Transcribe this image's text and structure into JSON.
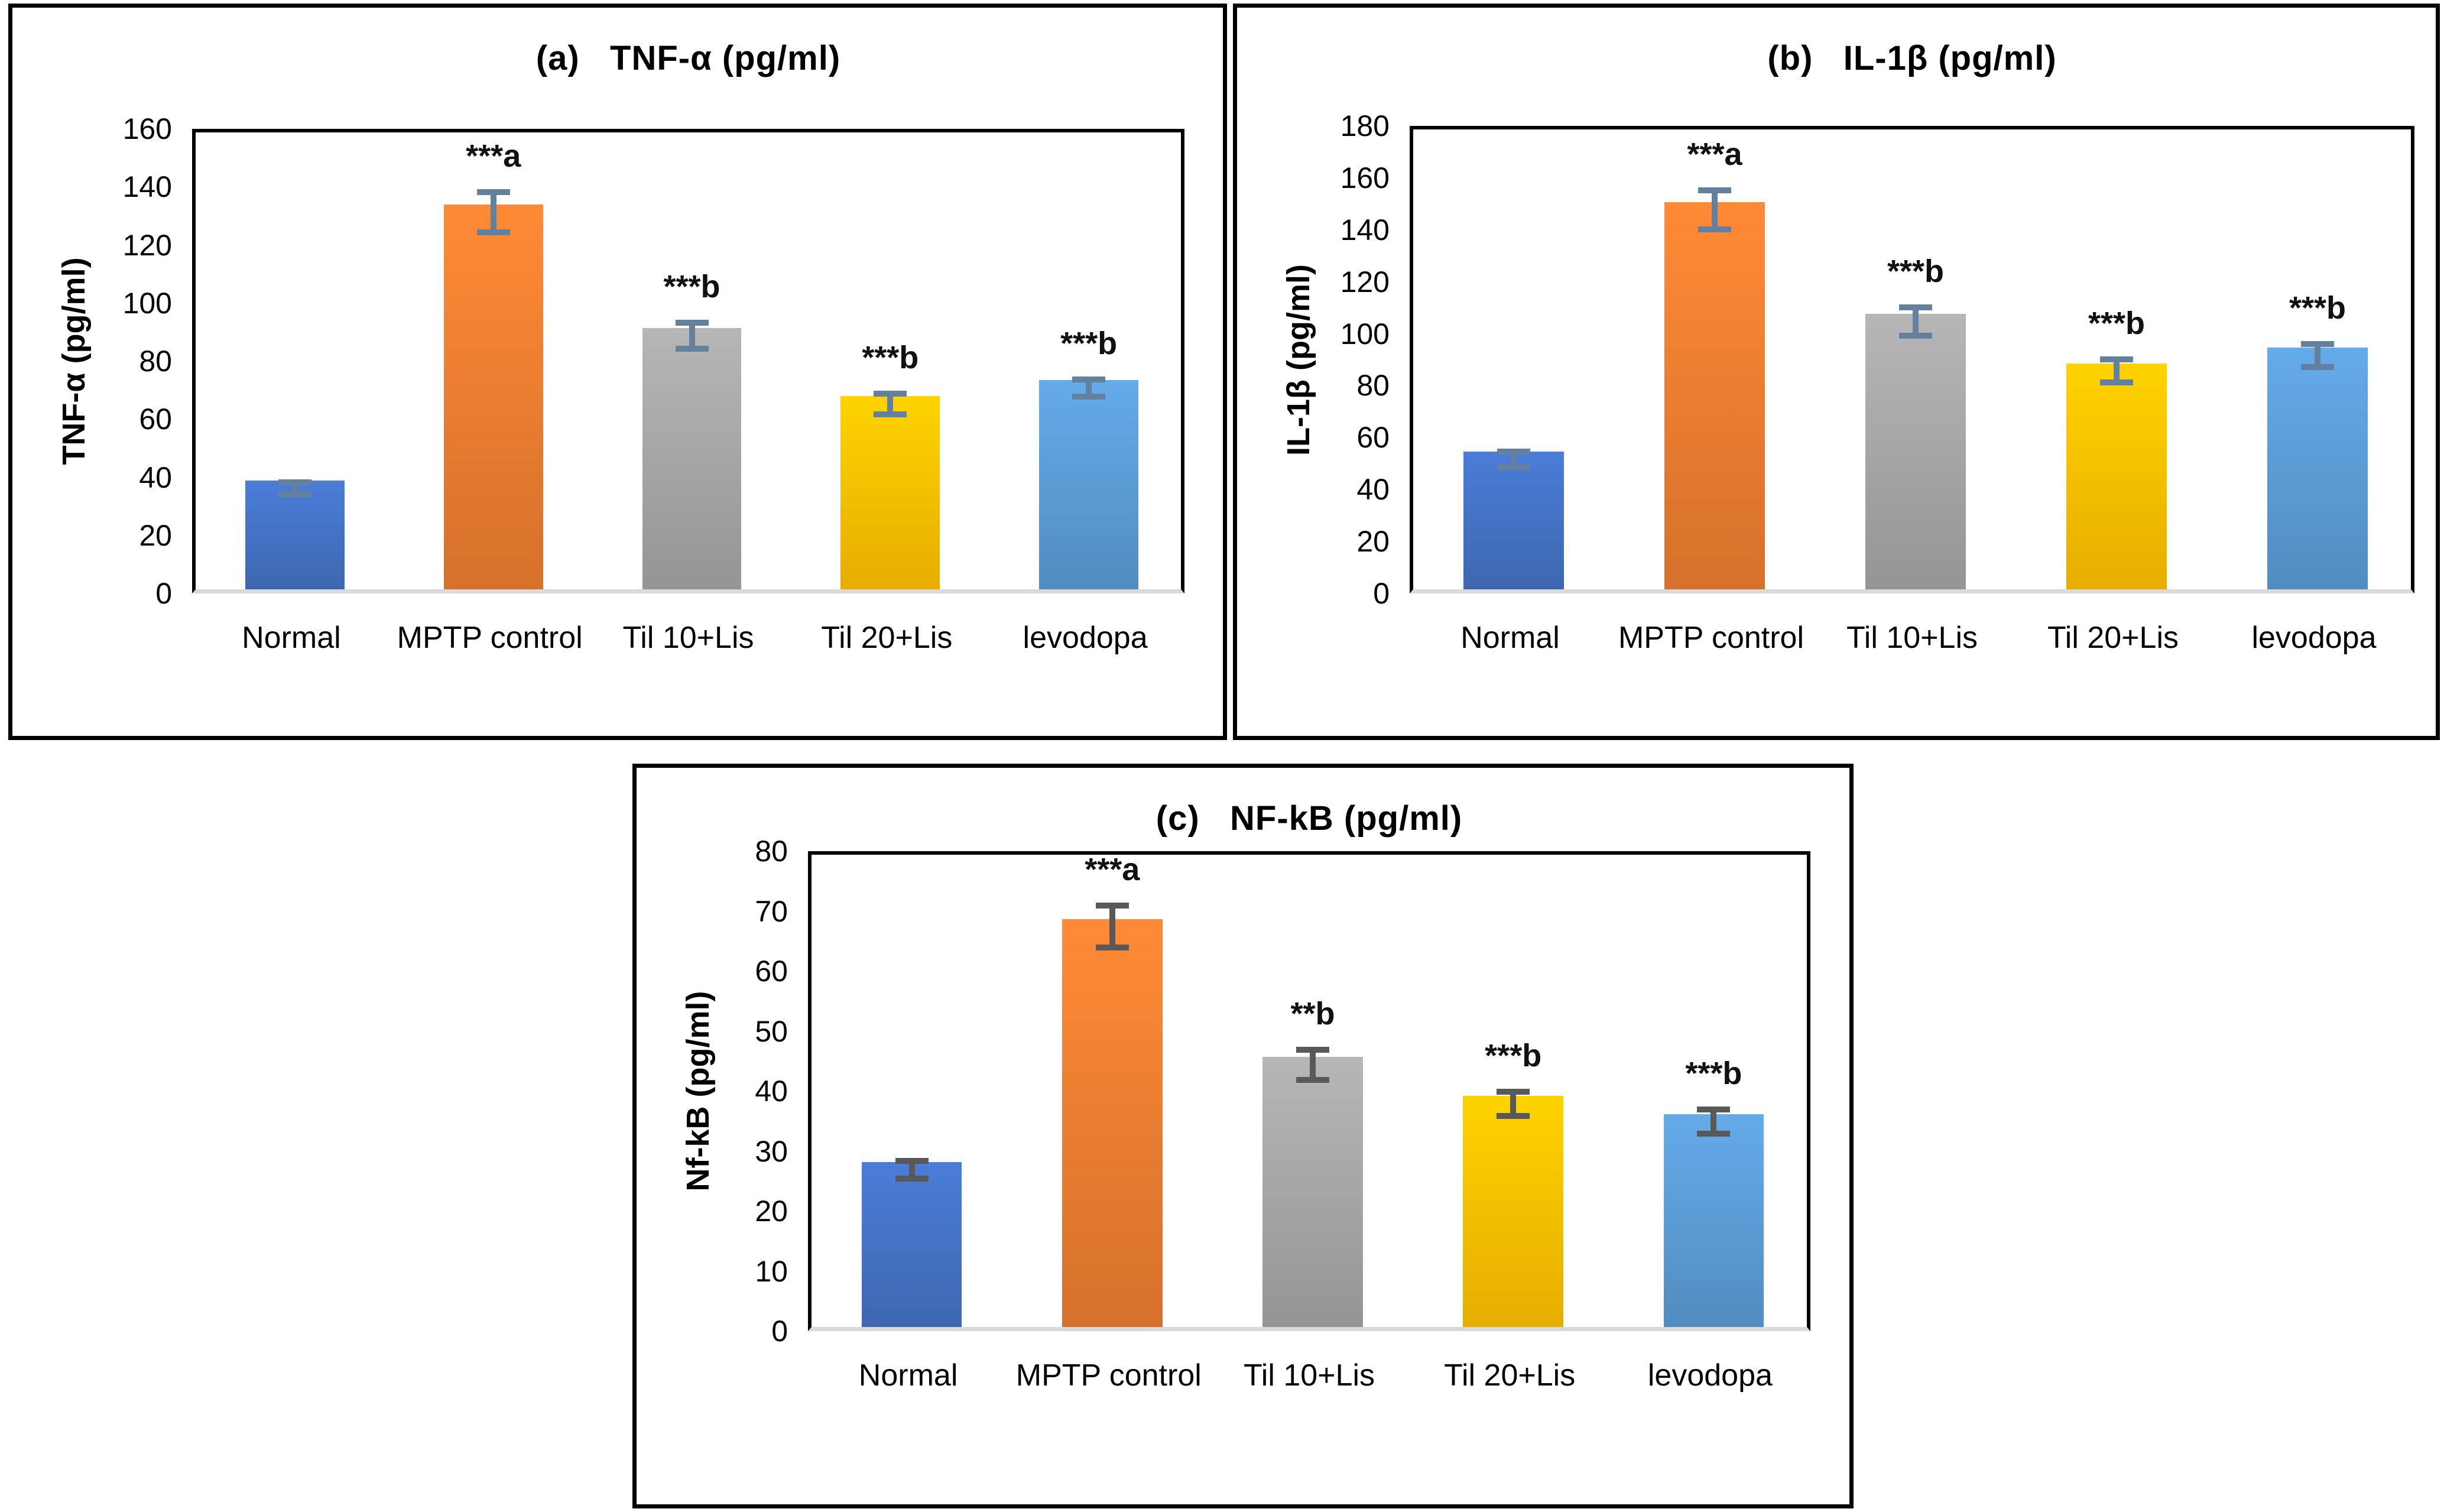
{
  "figure": {
    "background_color": "#ffffff",
    "panel_border_color": "#000000",
    "plot_frame_color": "#000000",
    "baseline_axis_color": "#D9D9D9",
    "bar_palette": [
      "#4472C4",
      "#ED7D31",
      "#A5A5A5",
      "#FFC000",
      "#5B9BD5"
    ]
  },
  "chart_data": [
    {
      "type": "bar",
      "panel_label": "(a)",
      "title": "(a)   TNF-α (pg/ml)",
      "ylabel": "TNF-α (pg/ml)",
      "xlabel": "",
      "categories": [
        "Normal",
        "MPTP control",
        "Til 10+Lis",
        "Til 20+Lis",
        "levodopa"
      ],
      "values": [
        37.5,
        132.5,
        90,
        66.5,
        72
      ],
      "errors": [
        2,
        7,
        4.5,
        3.5,
        3
      ],
      "annotations": [
        "",
        "***a",
        "***b",
        "***b",
        "***b"
      ],
      "ylim": [
        0,
        160
      ],
      "ytick_step": 20,
      "grid": false,
      "legend": null,
      "bar_colors": [
        "#4472C4",
        "#ED7D31",
        "#A5A5A5",
        "#FFC000",
        "#5B9BD5"
      ],
      "error_color": "#64809F"
    },
    {
      "type": "bar",
      "panel_label": "(b)",
      "title": "(b)   IL-1β (pg/ml)",
      "ylabel": "IL-1β (pg/ml)",
      "xlabel": "",
      "categories": [
        "Normal",
        "MPTP control",
        "Til 10+Lis",
        "Til 20+Lis",
        "levodopa"
      ],
      "values": [
        53,
        149,
        106,
        87,
        93
      ],
      "errors": [
        3,
        7.5,
        5.5,
        4.5,
        4.5
      ],
      "annotations": [
        "",
        "***a",
        "***b",
        "***b",
        "***b"
      ],
      "ylim": [
        0,
        180
      ],
      "ytick_step": 20,
      "grid": false,
      "legend": null,
      "bar_colors": [
        "#4472C4",
        "#ED7D31",
        "#A5A5A5",
        "#FFC000",
        "#5B9BD5"
      ],
      "error_color": "#64809F"
    },
    {
      "type": "bar",
      "panel_label": "(c)",
      "title": "(c)   NF-kB (pg/ml)",
      "ylabel": "Nf-kB (pg/ml)",
      "xlabel": "",
      "categories": [
        "Normal",
        "MPTP control",
        "Til 10+Lis",
        "Til 20+Lis",
        "levodopa"
      ],
      "values": [
        27.5,
        68,
        45,
        38.5,
        35.5
      ],
      "errors": [
        1.5,
        3.5,
        2.5,
        2,
        2
      ],
      "annotations": [
        "",
        "***a",
        "**b",
        "***b",
        "***b"
      ],
      "ylim": [
        0,
        80
      ],
      "ytick_step": 10,
      "grid": false,
      "legend": null,
      "bar_colors": [
        "#4472C4",
        "#ED7D31",
        "#A5A5A5",
        "#FFC000",
        "#5B9BD5"
      ],
      "error_color": "#595959"
    }
  ]
}
